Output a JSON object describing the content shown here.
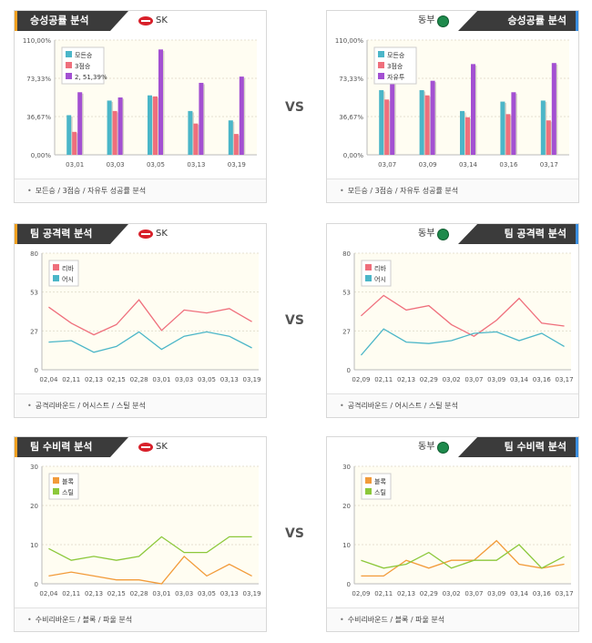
{
  "vs_label": "VS",
  "panels": [
    {
      "id": "left",
      "side": "left",
      "teams": [
        {
          "name": "SK"
        },
        {
          "name": "SK"
        },
        {
          "name": "SK"
        }
      ]
    },
    {
      "id": "right",
      "side": "right",
      "teams": [
        {
          "name": "동부"
        },
        {
          "name": "동부"
        },
        {
          "name": "동부"
        }
      ]
    }
  ],
  "sections": [
    {
      "title": "승성공률 분석",
      "footer": "모든승 / 3점승 / 자유투 성공률 분석"
    },
    {
      "title": "팀 공격력 분석",
      "footer": "공격리바운드 / 어시스트 / 스틸 분석"
    },
    {
      "title": "팀 수비력 분석",
      "footer": "수비리바운드 / 블록 / 파울 분석"
    }
  ],
  "colors": {
    "teal": "#4bb6c8",
    "red": "#ef6f7c",
    "purple": "#a350d2",
    "orange": "#f29b3a",
    "green": "#8cc83b",
    "plot_bg": "#fffdf2"
  },
  "chart_data": [
    {
      "id": "shooting-sk",
      "type": "bar",
      "categories": [
        "03,01",
        "03,03",
        "03,05",
        "03,13",
        "03,19"
      ],
      "y_ticks": [
        "0,00%",
        "36,67%",
        "73,33%",
        "110,00%"
      ],
      "ylim": [
        0,
        110
      ],
      "series": [
        {
          "name": "모든승",
          "color": "#4bb6c8",
          "values": [
            38,
            52,
            57,
            42,
            33
          ]
        },
        {
          "name": "3점승",
          "color": "#ef6f7c",
          "values": [
            22,
            42,
            56,
            30,
            20
          ]
        },
        {
          "name": "2, 51,39%",
          "color": "#a350d2",
          "values": [
            60,
            55,
            101,
            69,
            75
          ]
        }
      ],
      "legend_position": "top-left"
    },
    {
      "id": "shooting-db",
      "type": "bar",
      "categories": [
        "03,07",
        "03,09",
        "03,14",
        "03,16",
        "03,17"
      ],
      "y_ticks": [
        "0,00%",
        "36,67%",
        "73,33%",
        "110,00%"
      ],
      "ylim": [
        0,
        110
      ],
      "series": [
        {
          "name": "모든승",
          "color": "#4bb6c8",
          "values": [
            62,
            62,
            42,
            51,
            52
          ]
        },
        {
          "name": "3점승",
          "color": "#ef6f7c",
          "values": [
            53,
            57,
            36,
            39,
            33
          ]
        },
        {
          "name": "자유투",
          "color": "#a350d2",
          "values": [
            72,
            71,
            87,
            60,
            88
          ]
        }
      ],
      "legend_position": "top-left"
    },
    {
      "id": "offense-sk",
      "type": "line",
      "categories": [
        "02,04",
        "02,11",
        "02,13",
        "02,15",
        "02,28",
        "03,01",
        "03,03",
        "03,05",
        "03,13",
        "03,19"
      ],
      "y_ticks": [
        "0",
        "27",
        "53",
        "80"
      ],
      "ylim": [
        0,
        80
      ],
      "series": [
        {
          "name": "리바",
          "color": "#ef6f7c",
          "values": [
            43,
            32,
            24,
            31,
            48,
            27,
            41,
            39,
            42,
            33
          ]
        },
        {
          "name": "어시",
          "color": "#4bb6c8",
          "values": [
            19,
            20,
            12,
            16,
            26,
            14,
            23,
            26,
            23,
            15
          ]
        }
      ],
      "legend_position": "top-left"
    },
    {
      "id": "offense-db",
      "type": "line",
      "categories": [
        "02,09",
        "02,11",
        "02,13",
        "02,29",
        "03,02",
        "03,07",
        "03,09",
        "03,14",
        "03,16",
        "03,17"
      ],
      "y_ticks": [
        "0",
        "27",
        "53",
        "80"
      ],
      "ylim": [
        0,
        80
      ],
      "series": [
        {
          "name": "리바",
          "color": "#ef6f7c",
          "values": [
            37,
            51,
            41,
            44,
            31,
            23,
            34,
            49,
            32,
            30
          ]
        },
        {
          "name": "어시",
          "color": "#4bb6c8",
          "values": [
            10,
            28,
            19,
            18,
            20,
            25,
            26,
            20,
            25,
            16
          ]
        }
      ],
      "legend_position": "top-left"
    },
    {
      "id": "defense-sk",
      "type": "line",
      "categories": [
        "02,04",
        "02,11",
        "02,13",
        "02,15",
        "02,28",
        "03,01",
        "03,03",
        "03,05",
        "03,13",
        "03,19"
      ],
      "y_ticks": [
        "0",
        "10",
        "20",
        "30"
      ],
      "ylim": [
        0,
        30
      ],
      "series": [
        {
          "name": "블록",
          "color": "#f29b3a",
          "values": [
            2,
            3,
            2,
            1,
            1,
            0,
            7,
            2,
            5,
            2
          ]
        },
        {
          "name": "스틸",
          "color": "#8cc83b",
          "values": [
            9,
            6,
            7,
            6,
            7,
            12,
            8,
            8,
            12,
            12
          ]
        }
      ],
      "legend_position": "top-left"
    },
    {
      "id": "defense-db",
      "type": "line",
      "categories": [
        "02,09",
        "02,11",
        "02,13",
        "02,29",
        "03,02",
        "03,07",
        "03,09",
        "03,14",
        "03,16",
        "03,17"
      ],
      "y_ticks": [
        "0",
        "10",
        "20",
        "30"
      ],
      "ylim": [
        0,
        30
      ],
      "series": [
        {
          "name": "블록",
          "color": "#f29b3a",
          "values": [
            2,
            2,
            6,
            4,
            6,
            6,
            11,
            5,
            4,
            5
          ]
        },
        {
          "name": "스틸",
          "color": "#8cc83b",
          "values": [
            6,
            4,
            5,
            8,
            4,
            6,
            6,
            10,
            4,
            7
          ]
        }
      ],
      "legend_position": "top-left"
    }
  ]
}
